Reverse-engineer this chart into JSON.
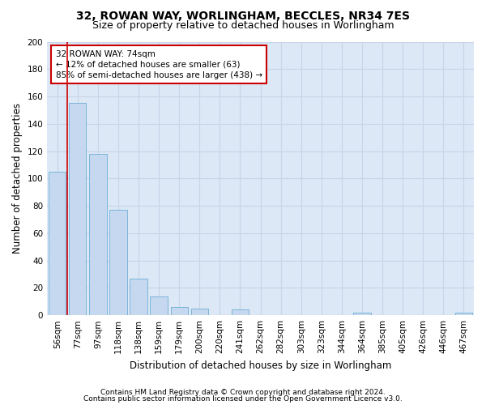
{
  "title": "32, ROWAN WAY, WORLINGHAM, BECCLES, NR34 7ES",
  "subtitle": "Size of property relative to detached houses in Worlingham",
  "xlabel": "Distribution of detached houses by size in Worlingham",
  "ylabel": "Number of detached properties",
  "bar_labels": [
    "56sqm",
    "77sqm",
    "97sqm",
    "118sqm",
    "138sqm",
    "159sqm",
    "179sqm",
    "200sqm",
    "220sqm",
    "241sqm",
    "262sqm",
    "282sqm",
    "303sqm",
    "323sqm",
    "344sqm",
    "364sqm",
    "385sqm",
    "405sqm",
    "426sqm",
    "446sqm",
    "467sqm"
  ],
  "bar_values": [
    105,
    155,
    118,
    77,
    27,
    14,
    6,
    5,
    0,
    4,
    0,
    0,
    0,
    0,
    0,
    2,
    0,
    0,
    0,
    0,
    2
  ],
  "bar_color": "#c5d8f0",
  "bar_edgecolor": "#6baed6",
  "annotation_text": "32 ROWAN WAY: 74sqm\n← 12% of detached houses are smaller (63)\n85% of semi-detached houses are larger (438) →",
  "annotation_box_color": "#ffffff",
  "annotation_box_edgecolor": "#cc0000",
  "vline_color": "#cc0000",
  "ylim": [
    0,
    200
  ],
  "yticks": [
    0,
    20,
    40,
    60,
    80,
    100,
    120,
    140,
    160,
    180,
    200
  ],
  "grid_color": "#c8d4e8",
  "background_color": "#dce8f5",
  "footer_line1": "Contains HM Land Registry data © Crown copyright and database right 2024.",
  "footer_line2": "Contains public sector information licensed under the Open Government Licence v3.0.",
  "title_fontsize": 10,
  "subtitle_fontsize": 9,
  "axis_label_fontsize": 8.5,
  "tick_fontsize": 7.5,
  "footer_fontsize": 6.5,
  "annotation_fontsize": 7.5
}
